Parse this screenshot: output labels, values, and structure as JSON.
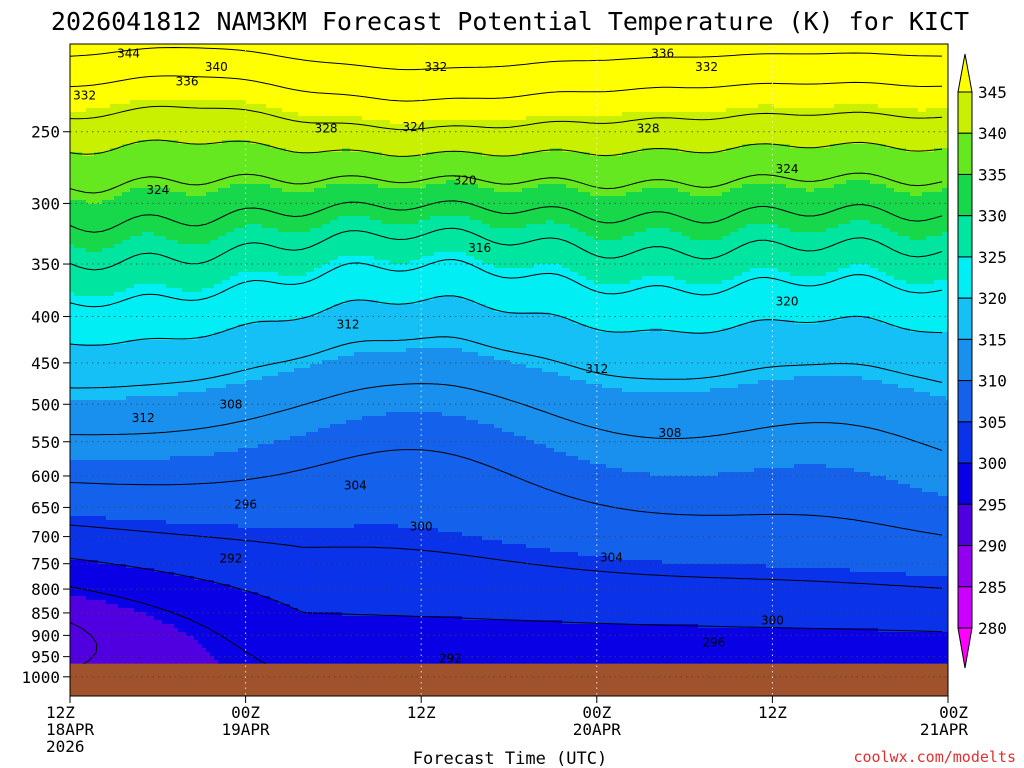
{
  "chart_data": {
    "type": "heatmap",
    "title": "2026041812 NAM3KM Forecast Potential Temperature (K) for KICT",
    "xlabel": "Forecast Time (UTC)",
    "ylabel": "",
    "x_ticks": [
      {
        "t": 0,
        "lines": [
          "12Z",
          "18APR",
          "2026"
        ]
      },
      {
        "t": 12,
        "lines": [
          "00Z",
          "19APR"
        ]
      },
      {
        "t": 24,
        "lines": [
          "12Z"
        ]
      },
      {
        "t": 36,
        "lines": [
          "00Z",
          "20APR"
        ]
      },
      {
        "t": 48,
        "lines": [
          "12Z"
        ]
      },
      {
        "t": 60,
        "lines": [
          "00Z",
          "21APR"
        ]
      }
    ],
    "xlim_hours": [
      0,
      60
    ],
    "y_scale": "log-pressure",
    "y_ticks_hpa": [
      250,
      300,
      350,
      400,
      450,
      500,
      550,
      600,
      650,
      700,
      750,
      800,
      850,
      900,
      950,
      1000
    ],
    "ylim_hpa": [
      1050,
      200
    ],
    "surface_pressure_hpa": 967,
    "colorbar": {
      "levels": [
        280,
        285,
        290,
        295,
        300,
        305,
        310,
        315,
        320,
        325,
        330,
        335,
        340,
        345
      ],
      "colors": [
        "#ff00ff",
        "#cc00ff",
        "#9400ef",
        "#5000e0",
        "#0a00e6",
        "#0a32e8",
        "#1462ec",
        "#1a90ee",
        "#14c0f6",
        "#00eef4",
        "#00e6a0",
        "#16d84a",
        "#66e820",
        "#c8f000",
        "#ffff00"
      ]
    },
    "contour_interval_k": 4,
    "contour_labels": [
      {
        "v": 344,
        "t": 4.0,
        "p": 205
      },
      {
        "v": 340,
        "t": 10.0,
        "p": 212
      },
      {
        "v": 336,
        "t": 8.0,
        "p": 220
      },
      {
        "v": 332,
        "t": 1.0,
        "p": 228
      },
      {
        "v": 332,
        "t": 25.0,
        "p": 212
      },
      {
        "v": 336,
        "t": 40.5,
        "p": 205
      },
      {
        "v": 332,
        "t": 43.5,
        "p": 212
      },
      {
        "v": 328,
        "t": 17.5,
        "p": 248
      },
      {
        "v": 324,
        "t": 23.5,
        "p": 247
      },
      {
        "v": 328,
        "t": 39.5,
        "p": 248
      },
      {
        "v": 324,
        "t": 6.0,
        "p": 290
      },
      {
        "v": 320,
        "t": 27.0,
        "p": 283
      },
      {
        "v": 324,
        "t": 49.0,
        "p": 275
      },
      {
        "v": 316,
        "t": 28.0,
        "p": 336
      },
      {
        "v": 320,
        "t": 49.0,
        "p": 385
      },
      {
        "v": 312,
        "t": 19.0,
        "p": 408
      },
      {
        "v": 312,
        "t": 36.0,
        "p": 457
      },
      {
        "v": 308,
        "t": 11.0,
        "p": 500
      },
      {
        "v": 312,
        "t": 5.0,
        "p": 518
      },
      {
        "v": 308,
        "t": 41.0,
        "p": 538
      },
      {
        "v": 304,
        "t": 19.5,
        "p": 615
      },
      {
        "v": 296,
        "t": 12.0,
        "p": 645
      },
      {
        "v": 300,
        "t": 24.0,
        "p": 682
      },
      {
        "v": 292,
        "t": 11.0,
        "p": 740
      },
      {
        "v": 304,
        "t": 37.0,
        "p": 738
      },
      {
        "v": 300,
        "t": 48.0,
        "p": 867
      },
      {
        "v": 296,
        "t": 44.0,
        "p": 917
      },
      {
        "v": 292,
        "t": 26.0,
        "p": 955
      }
    ],
    "credit": "coolwx.com/modelts"
  }
}
